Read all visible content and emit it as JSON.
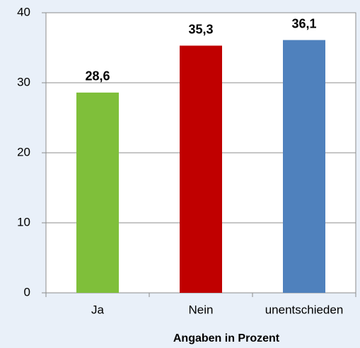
{
  "chart_data": {
    "type": "bar",
    "x_label": "Angaben in Prozent",
    "categories": [
      "Ja",
      "Nein",
      "unentschieden"
    ],
    "values": [
      28.6,
      35.3,
      36.1
    ],
    "value_labels": [
      "28,6",
      "35,3",
      "36,1"
    ],
    "colors": [
      "#7fbf3a",
      "#c00000",
      "#4f81bd"
    ],
    "ylim": [
      0,
      40
    ],
    "yticks": [
      0,
      10,
      20,
      30,
      40
    ],
    "grid": true
  }
}
